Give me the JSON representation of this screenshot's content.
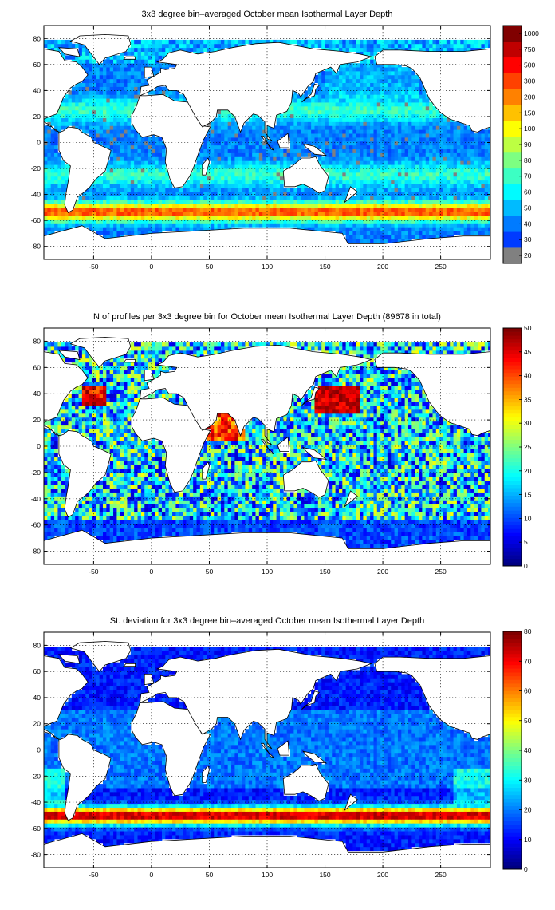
{
  "figure": {
    "panels": [
      {
        "title": "3x3 degree bin–averaged October mean Isothermal Layer Depth",
        "colorbar_ticks": [
          "20",
          "30",
          "40",
          "50",
          "60",
          "70",
          "80",
          "90",
          "100",
          "150",
          "200",
          "300",
          "500",
          "750",
          "1000"
        ],
        "colorbar_scale": "categorical",
        "colormap": "jet",
        "missing_color": "#808080",
        "field": "mean"
      },
      {
        "title": "N of profiles per 3x3 degree bin for October mean Isothermal Layer Depth  (89678 in total)",
        "colorbar_ticks": [
          "0",
          "5",
          "10",
          "15",
          "20",
          "25",
          "30",
          "35",
          "40",
          "45",
          "50"
        ],
        "colorbar_scale": "linear",
        "colorbar_range": [
          0,
          50
        ],
        "colormap": "jet",
        "field": "count"
      },
      {
        "title": "St. deviation for 3x3 degree bin–averaged October mean Isothermal Layer Depth",
        "colorbar_ticks": [
          "0",
          "10",
          "20",
          "30",
          "40",
          "50",
          "60",
          "70",
          "80"
        ],
        "colorbar_scale": "linear",
        "colorbar_range": [
          0,
          80
        ],
        "colormap": "jet",
        "field": "std"
      }
    ],
    "x_axis": {
      "range": [
        -93,
        293
      ],
      "ticks": [
        -50,
        0,
        50,
        100,
        150,
        200,
        250
      ],
      "tick_labels": [
        "-50",
        "0",
        "50",
        "100",
        "150",
        "200",
        "250"
      ]
    },
    "y_axis": {
      "range": [
        -90,
        90
      ],
      "ticks": [
        -80,
        -60,
        -40,
        -20,
        0,
        20,
        40,
        60,
        80
      ],
      "tick_labels": [
        "-80",
        "-60",
        "-40",
        "-20",
        "0",
        "20",
        "40",
        "60",
        "80"
      ]
    },
    "grid": "dotted",
    "bin_size_deg": 3,
    "month": "October"
  }
}
